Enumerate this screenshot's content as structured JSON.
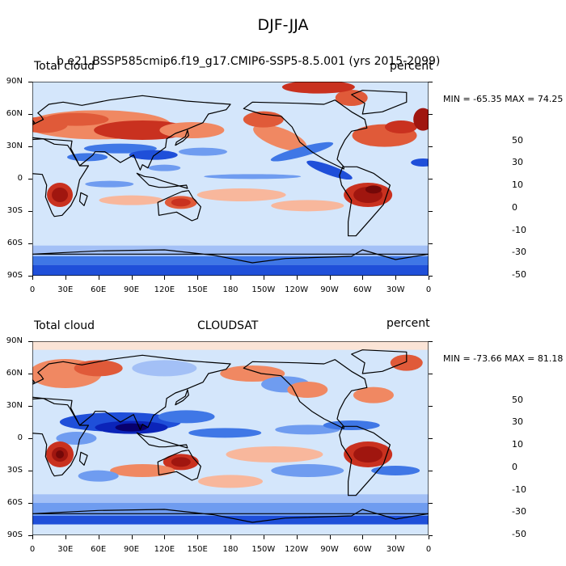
{
  "figure": {
    "title": "DJF-JJA"
  },
  "colors": {
    "levels": [
      "#08006e",
      "#0b24b9",
      "#1f4fd9",
      "#3f77e6",
      "#6f9cf0",
      "#a3c0f6",
      "#d4e6fb",
      "#fbe4d6",
      "#f8b79c",
      "#f08862",
      "#e05a39",
      "#c9311f",
      "#a0160f",
      "#740808"
    ],
    "coast": "#000000",
    "ocean_base": "#d4e6fb"
  },
  "panels": [
    {
      "id": "model",
      "left_label": "Total cloud",
      "center_label": "b.e21.BSSP585cmip6.f19_g17.CMIP6-SSP5-8.5.001 (yrs 2015-2099)",
      "right_label": "percent",
      "minmax": "MIN = -65.35 MAX = 74.25"
    },
    {
      "id": "obs",
      "left_label": "Total cloud",
      "center_label": "CLOUDSAT",
      "right_label": "percent",
      "minmax": "MIN = -73.66 MAX = 81.18"
    }
  ],
  "axes": {
    "lat_ticks": [
      "90N",
      "60N",
      "30N",
      "0",
      "30S",
      "60S",
      "90S"
    ],
    "lon_ticks": [
      "0",
      "30E",
      "60E",
      "90E",
      "120E",
      "150E",
      "180",
      "150W",
      "120W",
      "90W",
      "60W",
      "30W",
      "0"
    ]
  },
  "colorbar": {
    "labels": [
      "50",
      "30",
      "10",
      "0",
      "-10",
      "-30",
      "-50"
    ]
  }
}
